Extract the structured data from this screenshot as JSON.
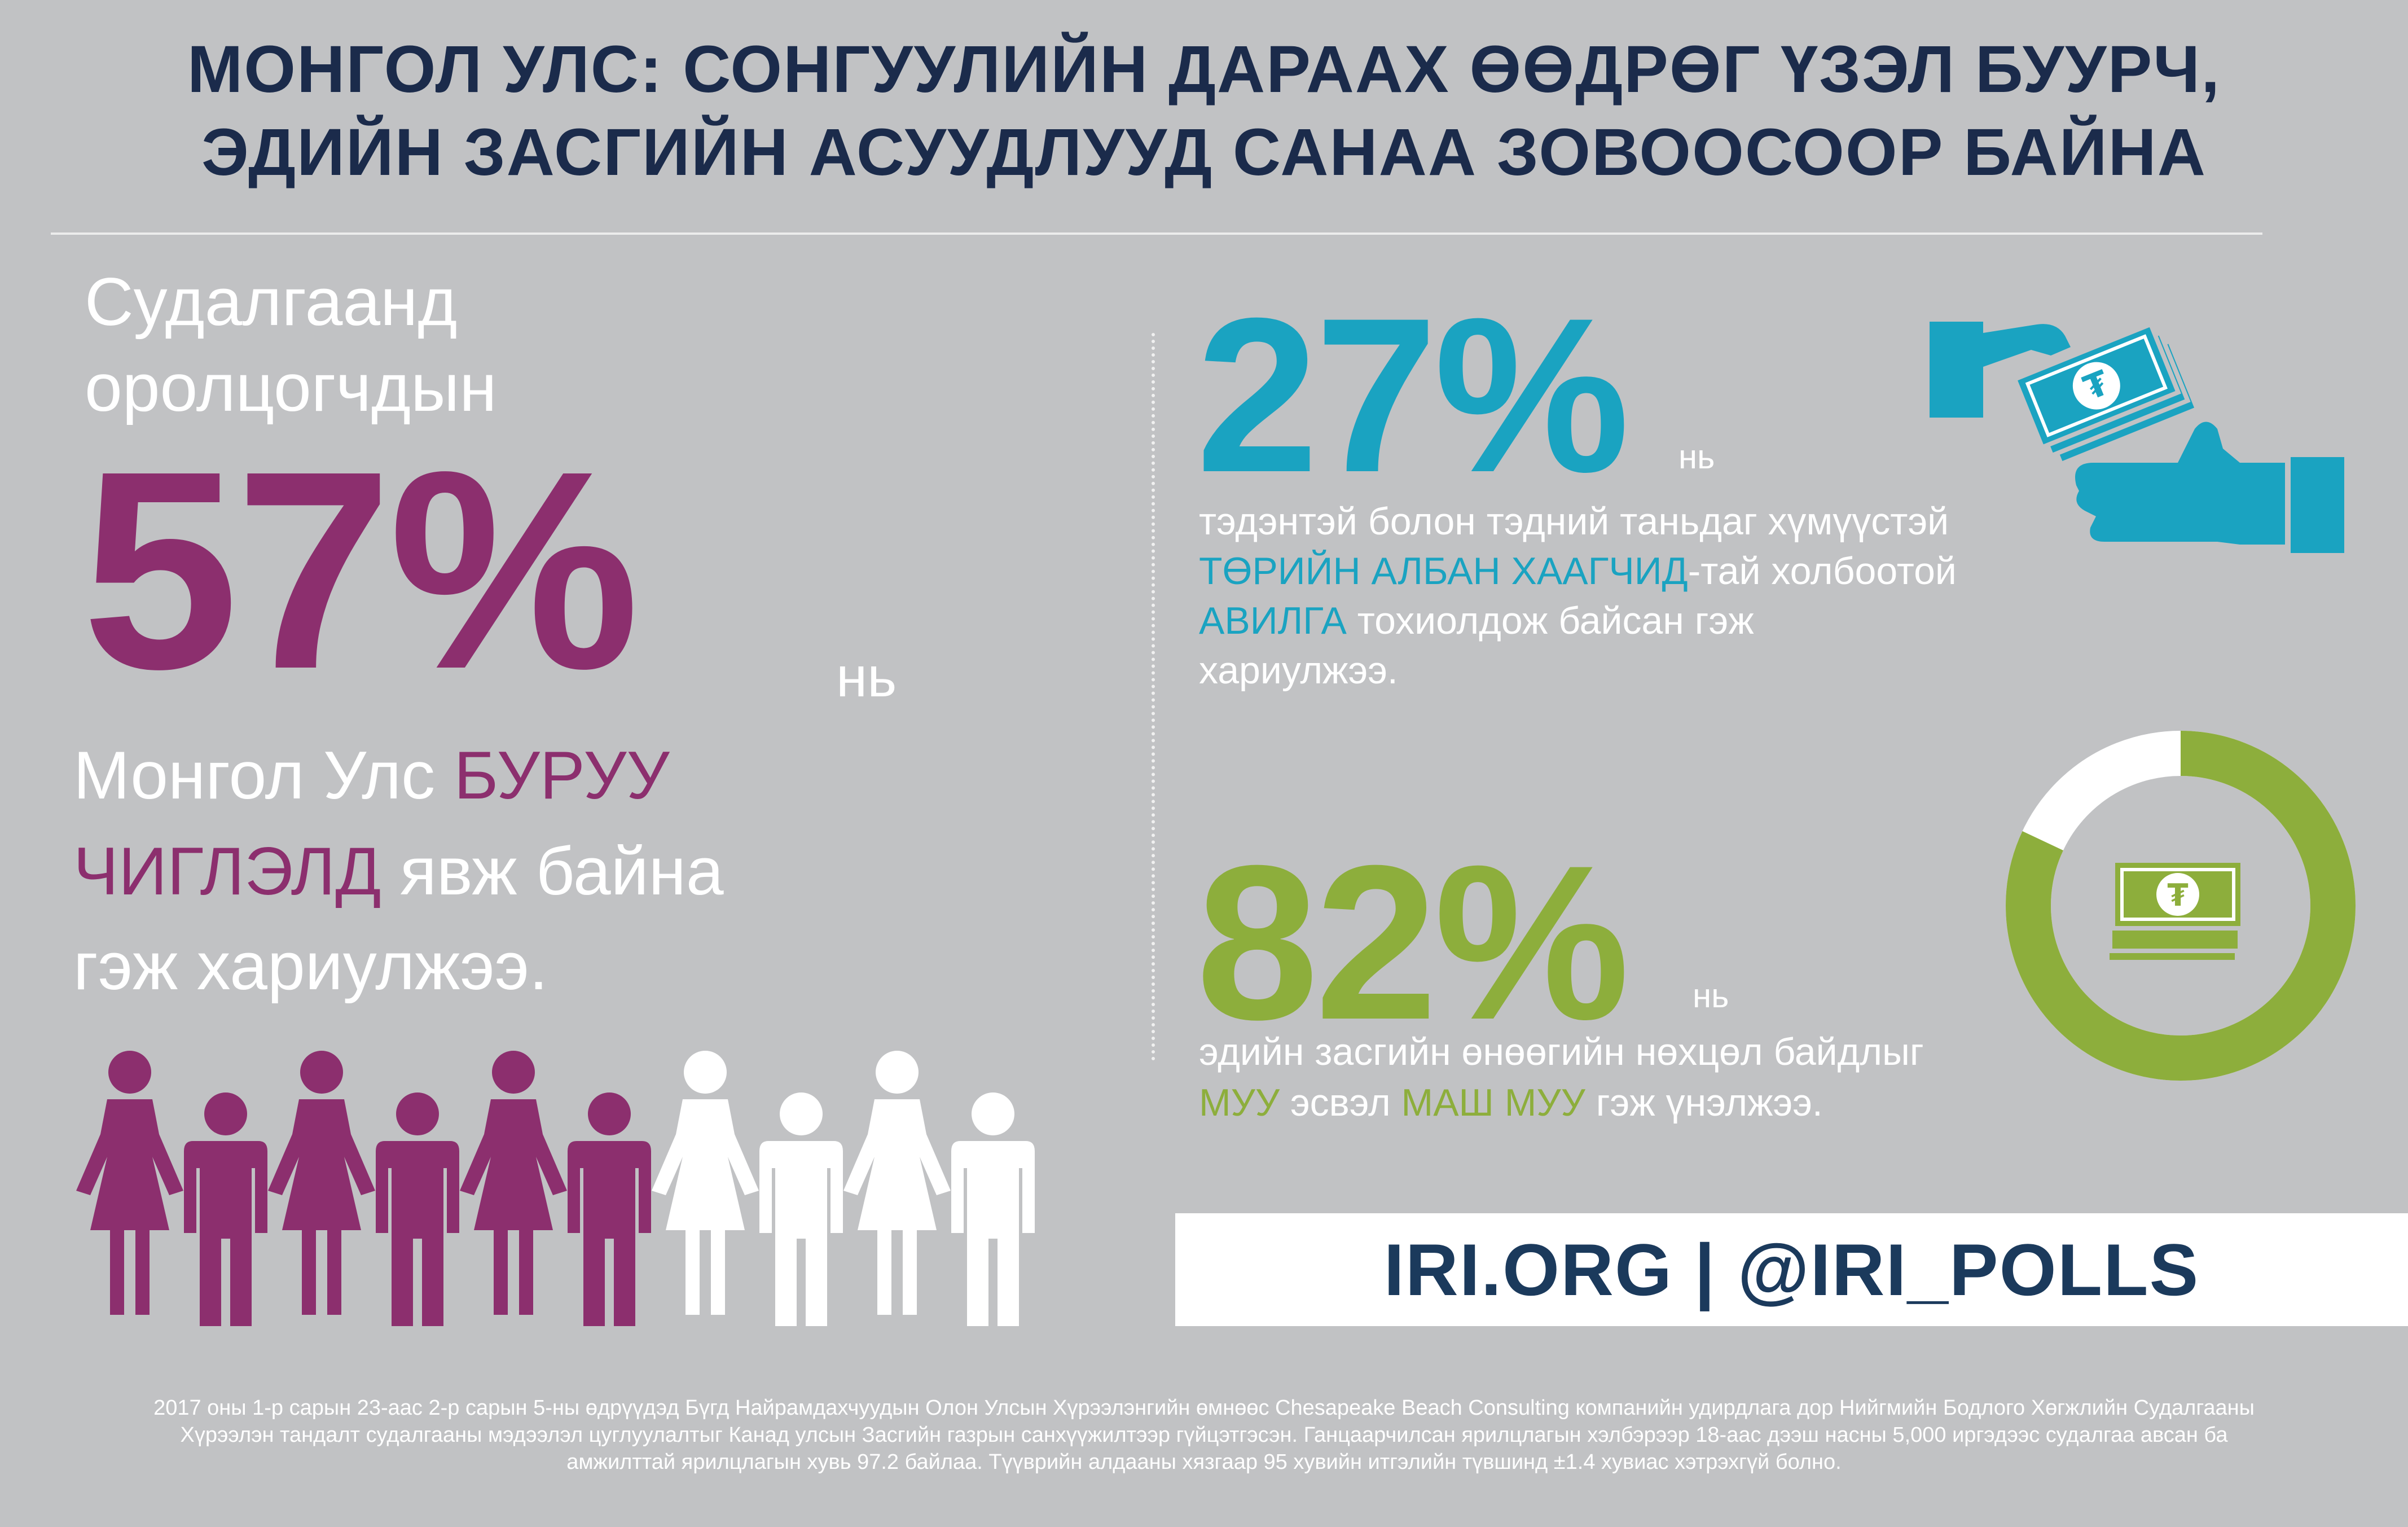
{
  "title": {
    "line1": "МОНГОЛ УЛС: СОНГУУЛИЙН ДАРААХ ӨӨДРӨГ ҮЗЭЛ БУУРЧ,",
    "line2": "ЭДИЙН ЗАСГИЙН АСУУДЛУУД САНАА ЗОВООСООР БАЙНА"
  },
  "left": {
    "intro_line1": "Судалгаанд",
    "intro_line2": "оролцогчдын",
    "percent": "57%",
    "suffix": "нь",
    "body_p1": "Монгол Улс ",
    "body_hl1": "БУРУУ",
    "body_hl2": "ЧИГЛЭЛД",
    "body_p2": " явж байна",
    "body_p3": "гэж хариулжээ.",
    "people_highlighted_of_total": "6 of 10"
  },
  "corruption": {
    "percent": "27%",
    "suffix": "нь",
    "line1": "тэдэнтэй болон тэдний таньдаг хүмүүстэй",
    "hl1": "ТӨРИЙН АЛБАН ХААГЧИД",
    "line2_rest": "-тай холбоотой",
    "hl2": "АВИЛГА",
    "line3_rest": " тохиолдож байсан гэж",
    "line4": "хариулжээ."
  },
  "economy": {
    "percent": "82%",
    "suffix": "нь",
    "line1": "эдийн засгийн өнөөгийн нөхцөл байдлыг",
    "hl1": "МУУ",
    "mid": " эсвэл ",
    "hl2": "МАШ МУУ",
    "end": " гэж үнэлжээ.",
    "donut_fraction": 0.82
  },
  "banner": "IRI.ORG  |  @IRI_POLLS",
  "footer": {
    "line1": "2017 оны 1-р сарын 23-аас 2-р сарын 5-ны өдрүүдэд Бүгд Найрамдахчуудын Олон Улсын Хүрээлэнгийн өмнөөс Chesapeake Beach Consulting компанийн удирдлага дор Нийгмийн Бодлого Хөгжлийн Судалгааны",
    "line2": "Хүрээлэн тандалт судалгааны мэдээлэл цуглуулалтыг Канад улсын Засгийн газрын санхүүжилтээр гүйцэтгэсэн. Ганцаарчилсан ярилцлагын хэлбэрээр 18-аас дээш насны 5,000 иргэдээс судалгаа авсан ба",
    "line3": "амжилттай ярилцлагын хувь 97.2 байлаа. Түүврийн алдааны хязгаар 95 хувийн итгэлийн түвшинд ±1.4 хувиас хэтрэхгүй болно."
  },
  "colors": {
    "background": "#c1c2c4",
    "navy": "#1b2b4b",
    "plum": "#8c2f6e",
    "teal": "#1aa3c1",
    "green": "#8dae3c"
  },
  "icons": [
    "person-icon",
    "money-hand-icon",
    "receiving-hand-icon",
    "money-stack-icon",
    "donut-chart"
  ]
}
